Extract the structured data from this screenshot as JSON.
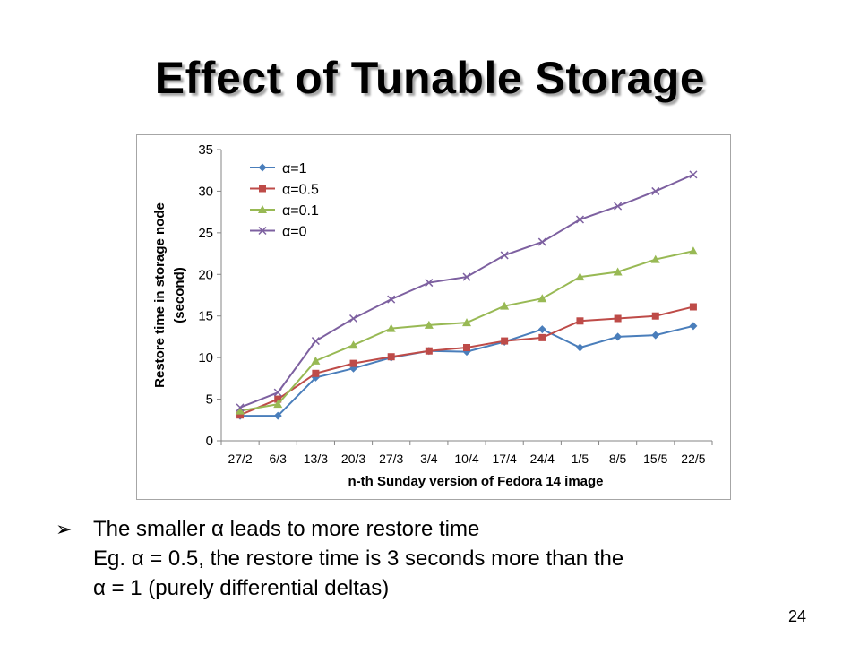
{
  "slide": {
    "title": "Effect of Tunable Storage",
    "bullets": [
      "The smaller α leads to more restore time",
      "Eg. α = 0.5, the restore time is 3 seconds more than the",
      "α = 1 (purely differential deltas)"
    ],
    "bullet_icon": "arrow-bullet-icon",
    "page_number": "24"
  },
  "chart_data": {
    "type": "line",
    "title": "",
    "xlabel": "n-th Sunday version of Fedora 14 image",
    "ylabel_lines": [
      "Restore time in storage node",
      "(second)"
    ],
    "categories": [
      "27/2",
      "6/3",
      "13/3",
      "20/3",
      "27/3",
      "3/4",
      "10/4",
      "17/4",
      "24/4",
      "1/5",
      "8/5",
      "15/5",
      "22/5"
    ],
    "ylim": [
      0,
      35
    ],
    "yticks": [
      0,
      5,
      10,
      15,
      20,
      25,
      30,
      35
    ],
    "grid": false,
    "legend": "top-left",
    "series": [
      {
        "name": "α=1",
        "color": "#4a7ebb",
        "marker": "diamond",
        "values": [
          3,
          3,
          7.6,
          8.7,
          10,
          10.8,
          10.7,
          11.9,
          13.4,
          11.2,
          12.5,
          12.7,
          13.8
        ]
      },
      {
        "name": "α=0.5",
        "color": "#be4b48",
        "marker": "square",
        "values": [
          3.1,
          5,
          8.1,
          9.3,
          10.1,
          10.8,
          11.2,
          12,
          12.4,
          14.4,
          14.7,
          15,
          16.1
        ]
      },
      {
        "name": "α=0.1",
        "color": "#98b954",
        "marker": "triangle",
        "values": [
          3.6,
          4.4,
          9.6,
          11.5,
          13.5,
          13.9,
          14.2,
          16.2,
          17.1,
          19.7,
          20.3,
          21.8,
          22.8
        ]
      },
      {
        "name": "α=0",
        "color": "#7d60a0",
        "marker": "x",
        "values": [
          4,
          5.8,
          12,
          14.7,
          17,
          19,
          19.7,
          22.3,
          23.9,
          26.6,
          28.2,
          30,
          32
        ]
      }
    ]
  }
}
